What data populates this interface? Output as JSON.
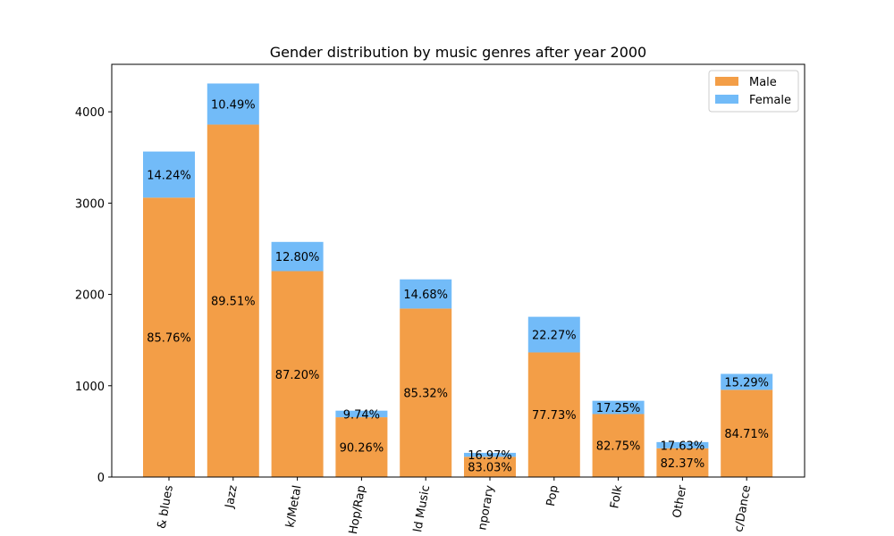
{
  "chart_data": {
    "type": "bar",
    "stacked": true,
    "title": "Gender distribution by music genres after year 2000",
    "xlabel": "",
    "ylabel": "",
    "categories": [
      "& blues",
      "Jazz",
      "k/Metal",
      "Hop/Rap",
      "ld Music",
      "nporary",
      "Pop",
      "Folk",
      "Other",
      "c/Dance"
    ],
    "ylim": [
      0,
      4520
    ],
    "yticks": [
      0,
      1000,
      2000,
      3000,
      4000
    ],
    "grid": false,
    "legend_position": "top-right",
    "series": [
      {
        "name": "Male",
        "color": "#f39e47",
        "values": [
          3060,
          3860,
          2255,
          655,
          1845,
          222,
          1365,
          690,
          315,
          955
        ],
        "labels": [
          "85.76%",
          "89.51%",
          "87.20%",
          "90.26%",
          "85.32%",
          "83.03%",
          "77.73%",
          "82.75%",
          "82.37%",
          "84.71%"
        ]
      },
      {
        "name": "Female",
        "color": "#72bbf8",
        "values": [
          505,
          450,
          320,
          72,
          320,
          43,
          390,
          145,
          68,
          175
        ],
        "labels": [
          "14.24%",
          "10.49%",
          "12.80%",
          "9.74%",
          "14.68%",
          "16.97%",
          "22.27%",
          "17.25%",
          "17.63%",
          "15.29%"
        ]
      }
    ]
  }
}
